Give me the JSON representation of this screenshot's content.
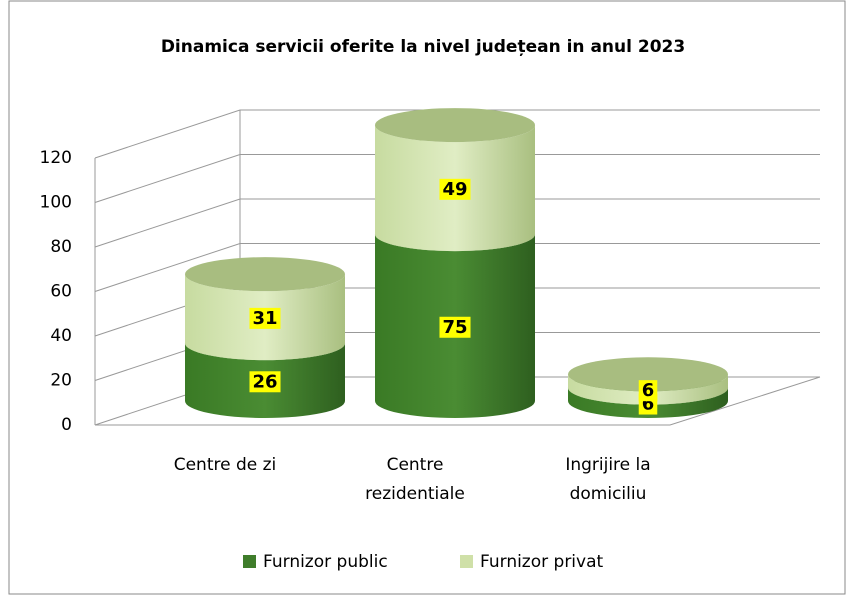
{
  "chart_data": {
    "type": "cylinder-stacked",
    "title": "Dinamica servicii oferite la nivel județean in anul 2023",
    "categories": [
      "Centre de zi",
      "Centre rezidentiale",
      "Ingrijire la domiciliu"
    ],
    "series": [
      {
        "name": "Furnizor public",
        "color": "#3f7d2b",
        "values": [
          26,
          75,
          6
        ]
      },
      {
        "name": "Furnizor privat",
        "color": "#cfe0a8",
        "values": [
          31,
          49,
          6
        ]
      }
    ],
    "ylim": [
      0,
      120
    ],
    "yticks": [
      0,
      20,
      40,
      60,
      80,
      100,
      120
    ],
    "grid": true,
    "legend": "bottom"
  }
}
